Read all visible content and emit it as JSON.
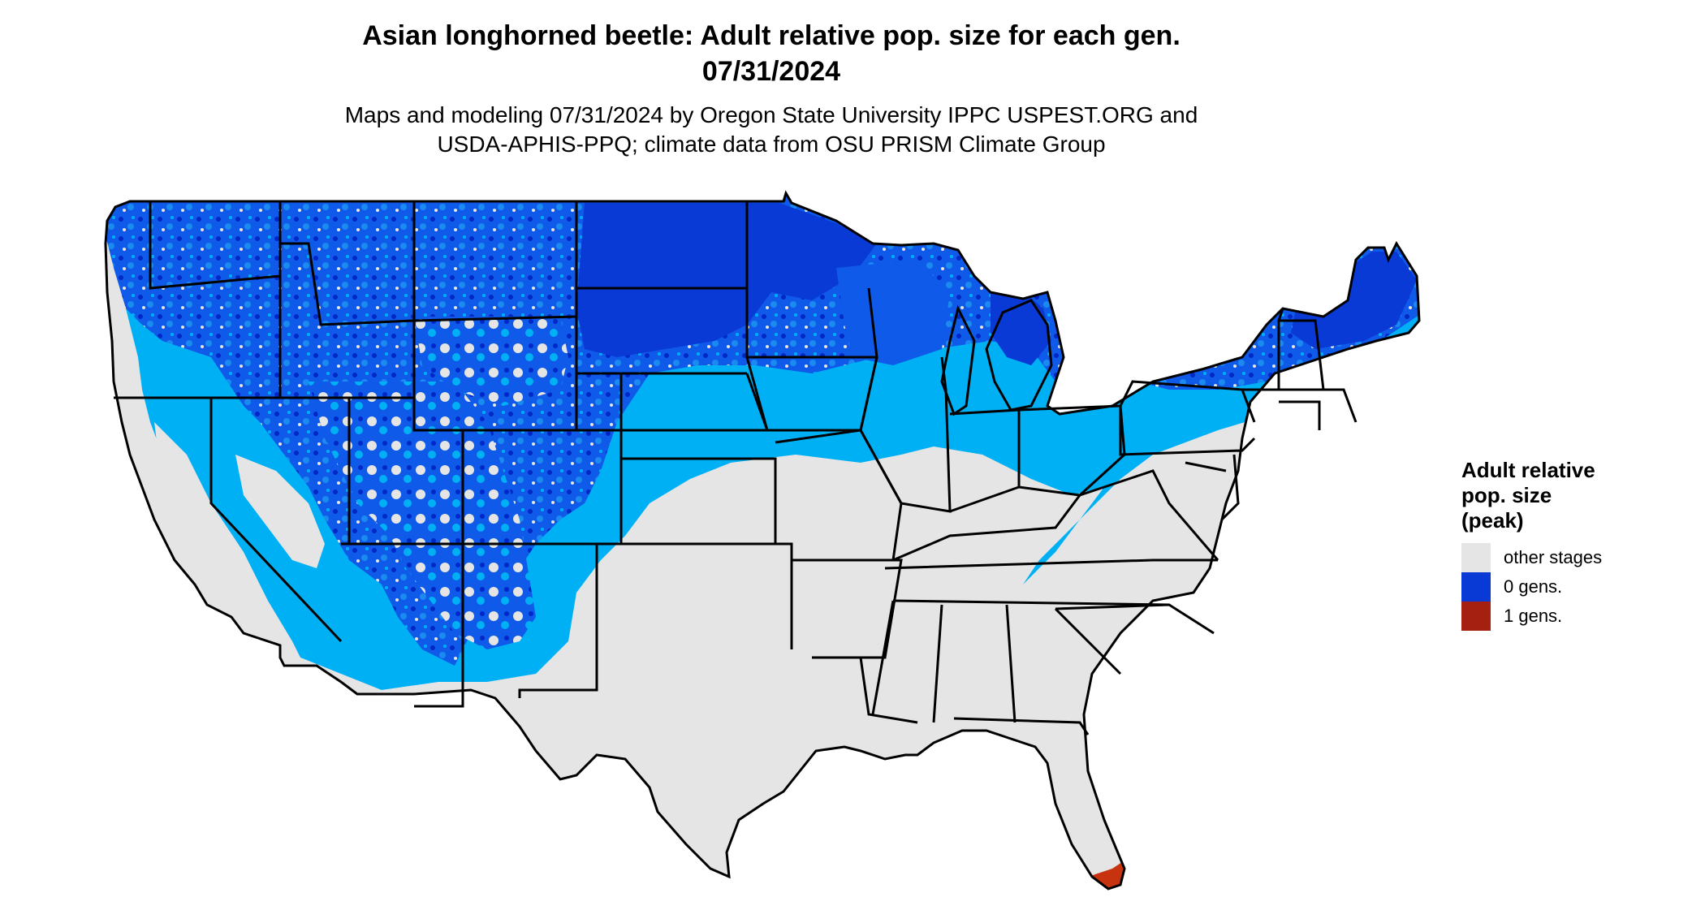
{
  "title": {
    "line1": "Asian longhorned beetle: Adult relative pop. size for each gen.",
    "line2": "07/31/2024"
  },
  "subtitle": {
    "line1": "Maps and modeling 07/31/2024 by Oregon State University IPPC USPEST.ORG and",
    "line2": "USDA-APHIS-PPQ; climate data from OSU PRISM Climate Group"
  },
  "legend": {
    "title_lines": [
      "Adult relative",
      "pop. size",
      "(peak)"
    ],
    "items": [
      {
        "label": "other stages",
        "color": "#e5e5e5"
      },
      {
        "label": "0 gens.",
        "color": "#0a3ad6"
      },
      {
        "label": "1 gens.",
        "color": "#a62011"
      }
    ]
  },
  "map": {
    "colors": {
      "land_gray": "#e5e5e5",
      "light_blue": "#00b0f5",
      "mid_blue": "#0f5ae8",
      "dark_blue": "#0a3ad6",
      "deep_blue": "#0028c8",
      "red": "#c8330f",
      "border": "#000000"
    }
  }
}
